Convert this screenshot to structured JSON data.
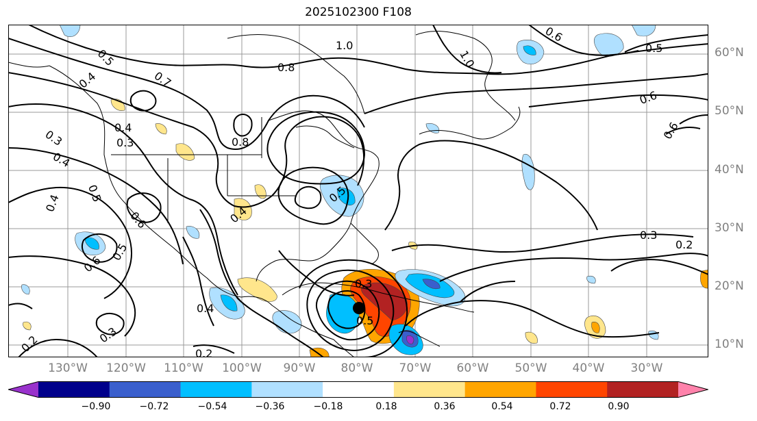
{
  "title": "2025102300 F108",
  "lat_labels": [
    "60°N",
    "50°N",
    "40°N",
    "30°N",
    "20°N",
    "10°N"
  ],
  "lon_labels": [
    "130°W",
    "120°W",
    "110°W",
    "100°W",
    "90°W",
    "80°W",
    "70°W",
    "60°W",
    "50°W",
    "40°W",
    "30°W"
  ],
  "colorbar": {
    "ticks": [
      "−0.90",
      "−0.72",
      "−0.54",
      "−0.36",
      "−0.18",
      "0.18",
      "0.36",
      "0.54",
      "0.72",
      "0.90"
    ],
    "colors": [
      "#9932cc",
      "#00008b",
      "#3a5fcd",
      "#00bfff",
      "#b0e0ff",
      "#ffffff",
      "#ffe68c",
      "#ffa500",
      "#ff4500",
      "#b22222",
      "#ff82ab"
    ]
  },
  "contour_labels": {
    "c1": "1.0",
    "c2": "0.8",
    "c3": "0.7",
    "c4": "0.6",
    "c5": "0.5",
    "c6": "0.6",
    "c7": "0.6",
    "c8": "0.5",
    "c9": "0.4",
    "c10": "0.3",
    "c11": "0.4",
    "c12": "0.3",
    "c13": "0.4",
    "c14": "0.8",
    "c15": "0.5",
    "c16": "0.4",
    "c17": "0.6",
    "c18": "0.5",
    "c19": "0.6",
    "c20": "0.4",
    "c21": "0.3",
    "c22": "0.2",
    "c23": "0.2",
    "c24": "0.3",
    "c25": "0.2",
    "c26": "0.4",
    "c27": "0.5",
    "c28": "0.3",
    "c29": "0.5",
    "c30": "1.0"
  }
}
